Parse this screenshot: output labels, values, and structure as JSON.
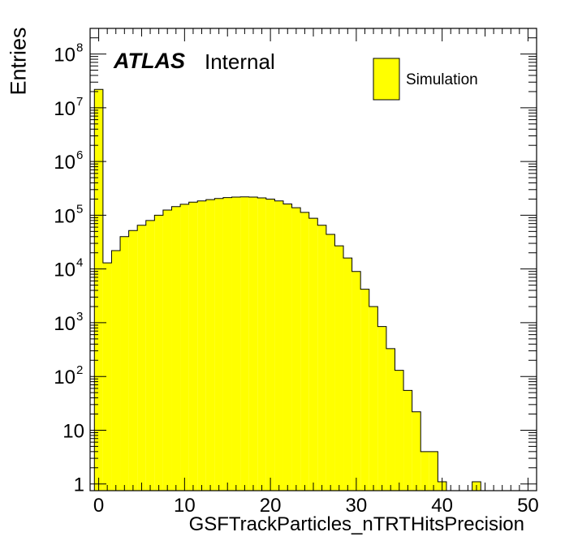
{
  "chart_data": {
    "type": "bar",
    "title": "",
    "xlabel": "GSFTrackParticles_nTRTHitsPrecision",
    "ylabel": "Entries",
    "x_ticks": [
      "0",
      "10",
      "20",
      "30",
      "40",
      "50"
    ],
    "y_ticks": [
      {
        "value": 1,
        "base": "1",
        "exp": ""
      },
      {
        "value": 10,
        "base": "10",
        "exp": ""
      },
      {
        "value": 100,
        "base": "10",
        "exp": "2"
      },
      {
        "value": 1000,
        "base": "10",
        "exp": "3"
      },
      {
        "value": 10000,
        "base": "10",
        "exp": "4"
      },
      {
        "value": 100000,
        "base": "10",
        "exp": "5"
      },
      {
        "value": 1000000,
        "base": "10",
        "exp": "6"
      },
      {
        "value": 10000000,
        "base": "10",
        "exp": "7"
      },
      {
        "value": 100000000,
        "base": "10",
        "exp": "8"
      }
    ],
    "xlim": [
      -1,
      51
    ],
    "ylim": [
      0.75,
      300000000
    ],
    "log_y": true,
    "bin_width": 1,
    "bin_edges_start": -0.5,
    "values": [
      22000000,
      13000,
      22000,
      40000,
      52000,
      65000,
      80000,
      100000,
      125000,
      145000,
      160000,
      175000,
      185000,
      195000,
      205000,
      213000,
      218000,
      220000,
      218000,
      210000,
      200000,
      185000,
      162000,
      138000,
      113000,
      88000,
      65000,
      44000,
      27000,
      16000,
      9000,
      4200,
      2000,
      850,
      330,
      130,
      55,
      22,
      4,
      4,
      1.1,
      0,
      0,
      0,
      1.1,
      0,
      0,
      0,
      0,
      0,
      0
    ],
    "series": [
      {
        "name": "Simulation",
        "color": "#ffff00"
      }
    ],
    "legend_position": "top-right",
    "annotations": [
      {
        "bold_italic": "ATLAS",
        "normal": "Internal"
      }
    ],
    "colors": {
      "fill": "#ffff00",
      "edge": "#000000"
    }
  }
}
